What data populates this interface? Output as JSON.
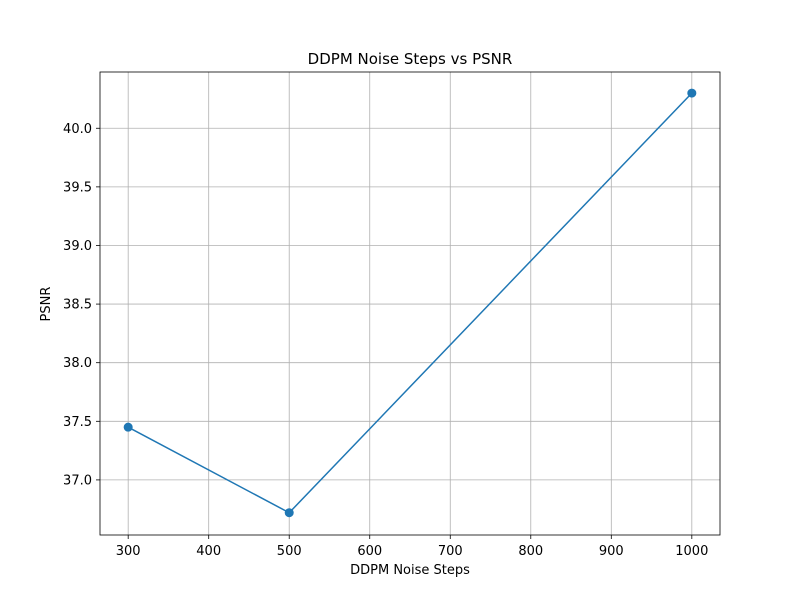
{
  "chart_data": {
    "type": "line",
    "title": "DDPM Noise Steps vs PSNR",
    "xlabel": "DDPM Noise Steps",
    "ylabel": "PSNR",
    "xlim": [
      265,
      1035
    ],
    "ylim": [
      36.53,
      40.48
    ],
    "xticks": [
      300,
      400,
      500,
      600,
      700,
      800,
      900,
      1000
    ],
    "xtick_labels": [
      "300",
      "400",
      "500",
      "600",
      "700",
      "800",
      "900",
      "1000"
    ],
    "yticks": [
      37.0,
      37.5,
      38.0,
      38.5,
      39.0,
      39.5,
      40.0
    ],
    "ytick_labels": [
      "37.0",
      "37.5",
      "38.0",
      "38.5",
      "39.0",
      "39.5",
      "40.0"
    ],
    "grid": true,
    "series": [
      {
        "x": [
          300,
          500,
          1000
        ],
        "y": [
          37.45,
          36.72,
          40.3
        ],
        "color": "#1f77b4",
        "marker": "circle"
      }
    ]
  }
}
